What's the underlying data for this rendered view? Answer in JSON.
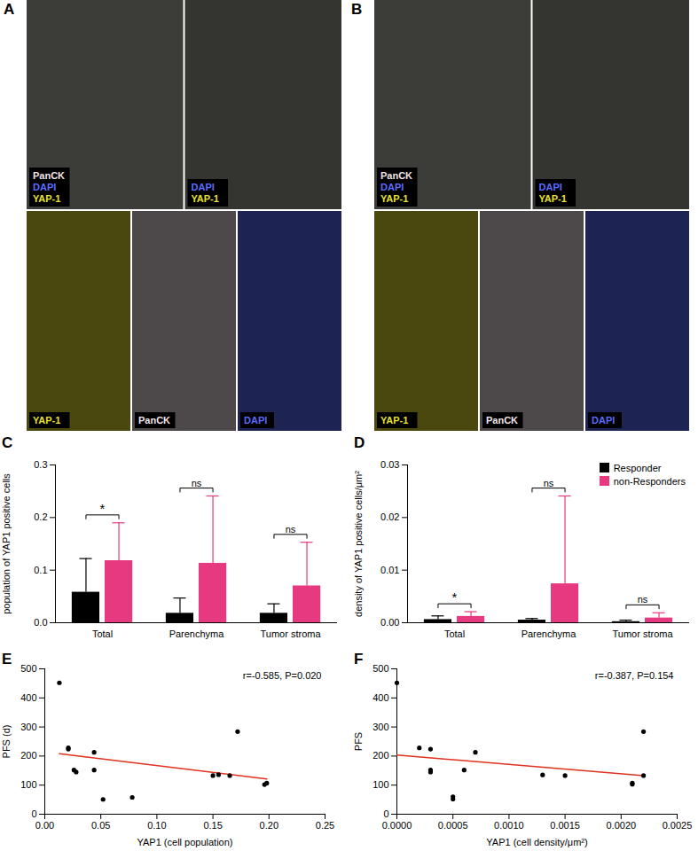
{
  "image_panels": [
    {
      "letter": "A",
      "rows": [
        [
          {
            "labels": [
              {
                "text": "PanCK",
                "color": "#f2e4ea"
              },
              {
                "text": "DAPI",
                "color": "#5b6cff"
              },
              {
                "text": "YAP-1",
                "color": "#e8e030"
              }
            ]
          },
          {
            "labels": [
              {
                "text": "DAPI",
                "color": "#5b6cff"
              },
              {
                "text": "YAP-1",
                "color": "#e8e030"
              }
            ]
          }
        ],
        [
          {
            "labels": [
              {
                "text": "YAP-1",
                "color": "#e8e030"
              }
            ]
          },
          {
            "labels": [
              {
                "text": "PanCK",
                "color": "#f2e4ea"
              }
            ]
          },
          {
            "labels": [
              {
                "text": "DAPI",
                "color": "#5b6cff"
              }
            ]
          }
        ]
      ]
    },
    {
      "letter": "B",
      "rows": [
        [
          {
            "labels": [
              {
                "text": "PanCK",
                "color": "#f2e4ea"
              },
              {
                "text": "DAPI",
                "color": "#5b6cff"
              },
              {
                "text": "YAP-1",
                "color": "#e8e030"
              }
            ]
          },
          {
            "labels": [
              {
                "text": "DAPI",
                "color": "#5b6cff"
              },
              {
                "text": "YAP-1",
                "color": "#e8e030"
              }
            ]
          }
        ],
        [
          {
            "labels": [
              {
                "text": "YAP-1",
                "color": "#e8e030"
              }
            ]
          },
          {
            "labels": [
              {
                "text": "PanCK",
                "color": "#f2e4ea"
              }
            ]
          },
          {
            "labels": [
              {
                "text": "DAPI",
                "color": "#5b6cff"
              }
            ]
          }
        ]
      ]
    }
  ],
  "chart_data": [
    {
      "panel": "C",
      "type": "bar",
      "ylabel": "population of YAP1 positive cells",
      "categories": [
        "Total",
        "Parenchyma",
        "Tumor stroma"
      ],
      "series": [
        {
          "color": "#000000",
          "values": [
            0.058,
            0.018,
            0.018
          ],
          "errors": [
            0.064,
            0.029,
            0.018
          ]
        },
        {
          "color": "#e6397f",
          "values": [
            0.118,
            0.113,
            0.07
          ],
          "errors": [
            0.072,
            0.128,
            0.083
          ]
        }
      ],
      "significance": [
        "*",
        "ns",
        "ns"
      ],
      "ylim": [
        0,
        0.3
      ],
      "yticks": [
        {
          "value": 0,
          "label": "0.0"
        },
        0.1,
        0.2,
        0.3
      ]
    },
    {
      "panel": "D",
      "type": "bar",
      "ylabel": "density of YAP1 positive cells/μm²",
      "categories": [
        "Total",
        "Parenchyma",
        "Tumor stroma"
      ],
      "series": [
        {
          "name": "Responder",
          "color": "#000000",
          "values": [
            0.0006,
            0.0005,
            0.0002
          ],
          "errors": [
            0.0007,
            0.0003,
            0.0003
          ]
        },
        {
          "name": "non-Responders",
          "color": "#e6397f",
          "values": [
            0.0012,
            0.0074,
            0.0009
          ],
          "errors": [
            0.0009,
            0.0167,
            0.001
          ]
        }
      ],
      "significance": [
        "*",
        "ns",
        "ns"
      ],
      "legend": "top-right",
      "ylim": [
        0,
        0.03
      ],
      "yticks": [
        {
          "value": 0,
          "label": "0.00"
        },
        0.01,
        0.02,
        0.03
      ]
    },
    {
      "panel": "E",
      "type": "scatter",
      "xlabel": "YAP1 (cell population)",
      "ylabel": "PFS (d)",
      "x": [
        0.013,
        0.021,
        0.021,
        0.026,
        0.028,
        0.044,
        0.044,
        0.052,
        0.078,
        0.15,
        0.155,
        0.165,
        0.172,
        0.196,
        0.198
      ],
      "values": [
        452,
        228,
        224,
        152,
        145,
        213,
        152,
        51,
        58,
        133,
        136,
        133,
        284,
        102,
        107
      ],
      "color": "#000000",
      "annotation": "r=-0.585, P=0.020",
      "xlim": [
        0,
        0.25
      ],
      "xticks": [
        {
          "value": 0,
          "label": "0.00"
        },
        0.05,
        {
          "value": 0.1,
          "label": "0.10"
        },
        0.15,
        {
          "value": 0.2,
          "label": "0.20"
        },
        0.25
      ],
      "ylim": [
        0,
        500
      ],
      "yticks": [
        0,
        100,
        200,
        300,
        400,
        500
      ]
    },
    {
      "panel": "F",
      "type": "scatter",
      "xlabel": "YAP1 (cell density/μm²)",
      "ylabel": "PFS",
      "x": [
        0,
        0.0002,
        0.0003,
        0.0003,
        0.0003,
        0.0005,
        0.0005,
        0.0006,
        0.0007,
        0.0013,
        0.0015,
        0.0021,
        0.0021,
        0.0022,
        0.0022
      ],
      "values": [
        452,
        228,
        224,
        152,
        145,
        60,
        52,
        152,
        213,
        135,
        133,
        107,
        103,
        284,
        133
      ],
      "color": "#000000",
      "annotation": "r=-0.387, P=0.154",
      "xlim": [
        0,
        0.0025
      ],
      "xticks": [
        {
          "value": 0,
          "label": "0.0000"
        },
        0.0005,
        {
          "value": 0.001,
          "label": "0.0010"
        },
        0.0015,
        {
          "value": 0.002,
          "label": "0.0020"
        },
        0.0025
      ],
      "ylim": [
        0,
        500
      ],
      "yticks": [
        0,
        100,
        200,
        300,
        400,
        500
      ]
    }
  ]
}
